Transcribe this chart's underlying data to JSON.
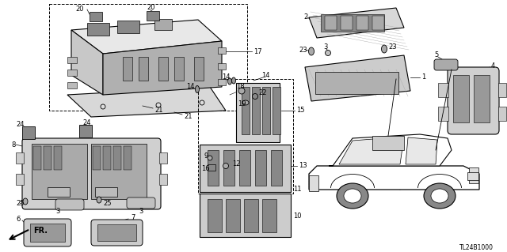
{
  "diagram_code": "TL24B1000",
  "bg_color": "#ffffff",
  "figsize": [
    6.4,
    3.19
  ],
  "dpi": 100,
  "font_size": 6.0,
  "lw_main": 0.8,
  "lw_thin": 0.4,
  "gray_dark": "#555555",
  "gray_mid": "#888888",
  "gray_light": "#cccccc",
  "gray_lighter": "#e0e0e0",
  "hatching": "///"
}
